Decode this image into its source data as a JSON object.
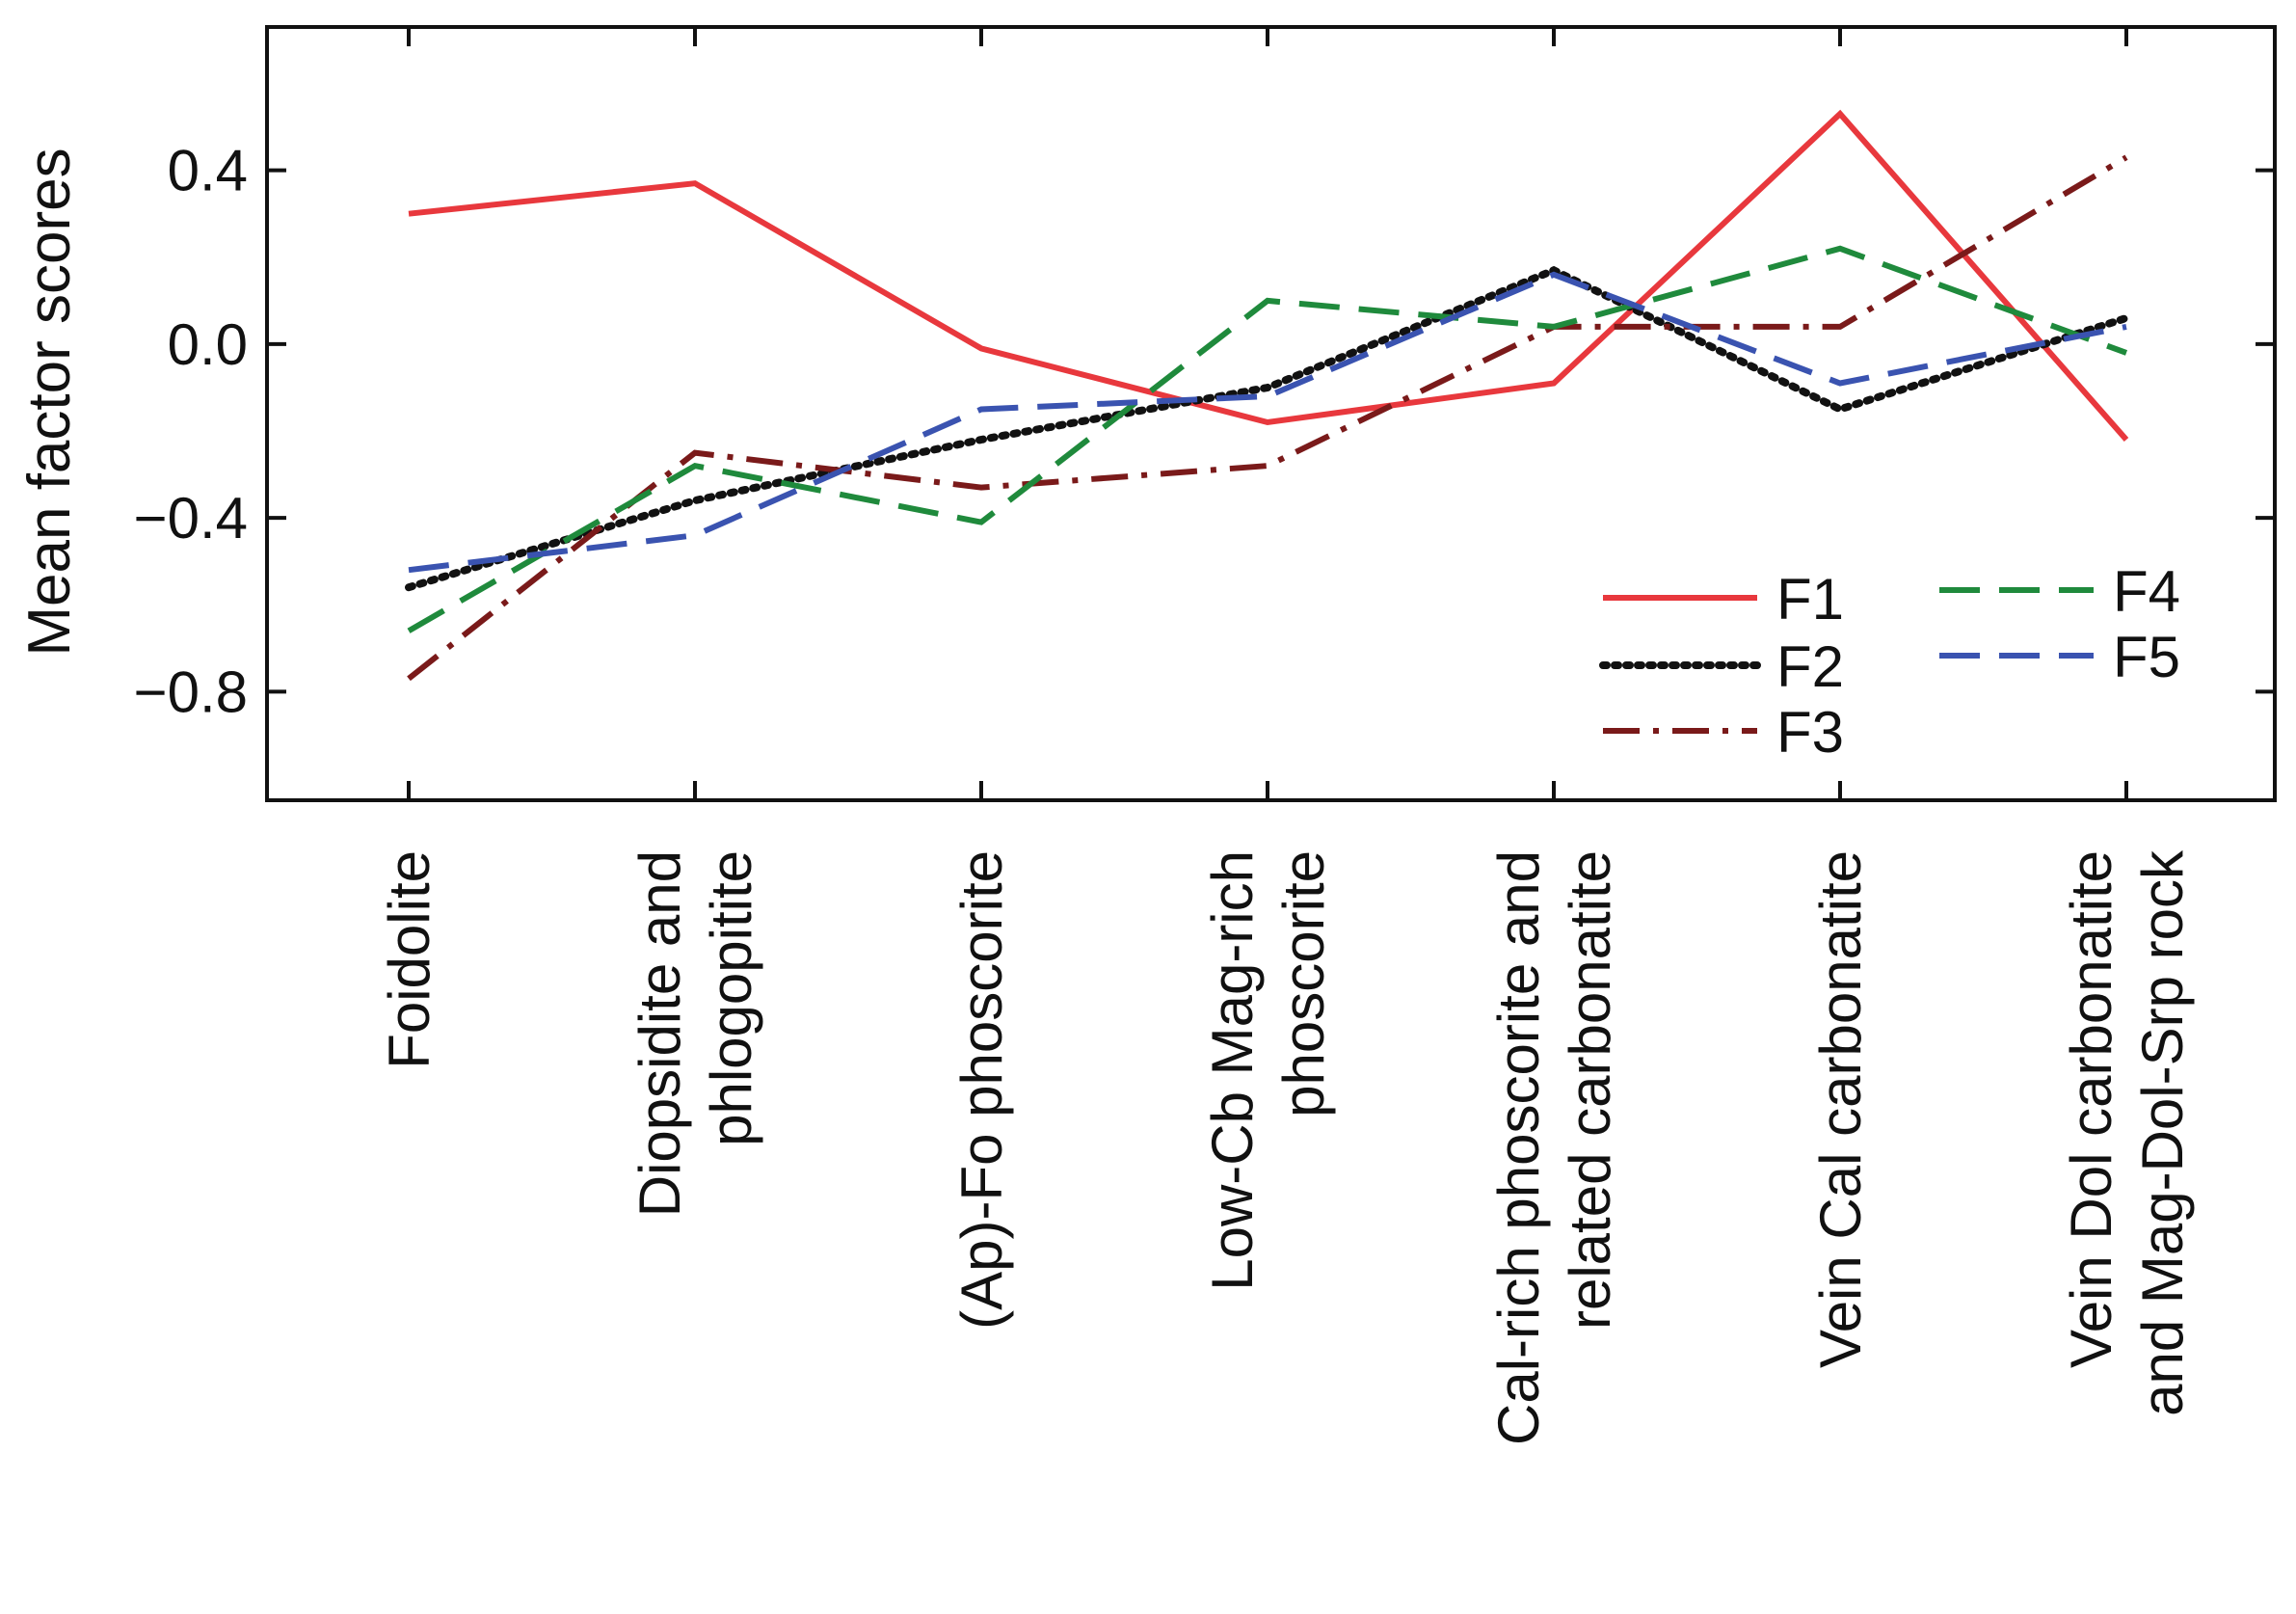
{
  "chart_data": {
    "type": "line",
    "title": "",
    "xlabel": "",
    "ylabel": "Mean factor scores",
    "ylim": [
      -1.05,
      0.73
    ],
    "yticks": [
      -0.8,
      -0.4,
      0.0,
      0.4
    ],
    "ytick_labels": [
      "−0.8",
      "−0.4",
      "0.0",
      "0.4"
    ],
    "grid": false,
    "legend_position": "lower-right",
    "categories": [
      [
        "Foidolite"
      ],
      [
        "Diopsidite and",
        "phlogopitite"
      ],
      [
        "(Ap)-Fo phoscorite"
      ],
      [
        "Low-Cb Mag-rich",
        "phoscorite"
      ],
      [
        "Cal-rich phoscorite and",
        "related carbonatite"
      ],
      [
        "Vein Cal carbonatite"
      ],
      [
        "Vein Dol carbonatite",
        "and Mag-Dol-Srp rock"
      ]
    ],
    "series": [
      {
        "name": "F1",
        "color": "#e8383d",
        "dash": "solid",
        "values": [
          0.3,
          0.37,
          -0.01,
          -0.18,
          -0.09,
          0.53,
          -0.22
        ]
      },
      {
        "name": "F2",
        "color": "#111111",
        "dash": "dotted",
        "values": [
          -0.56,
          -0.36,
          -0.22,
          -0.1,
          0.17,
          -0.15,
          0.06
        ]
      },
      {
        "name": "F3",
        "color": "#7a1a1a",
        "dash": "dashdot",
        "values": [
          -0.77,
          -0.25,
          -0.33,
          -0.28,
          0.04,
          0.04,
          0.43
        ]
      },
      {
        "name": "F4",
        "color": "#1f8a3c",
        "dash": "dashed",
        "values": [
          -0.66,
          -0.28,
          -0.41,
          0.1,
          0.04,
          0.22,
          -0.02
        ]
      },
      {
        "name": "F5",
        "color": "#3a53b0",
        "dash": "dashed",
        "values": [
          -0.52,
          -0.44,
          -0.15,
          -0.12,
          0.16,
          -0.09,
          0.04
        ]
      }
    ]
  }
}
